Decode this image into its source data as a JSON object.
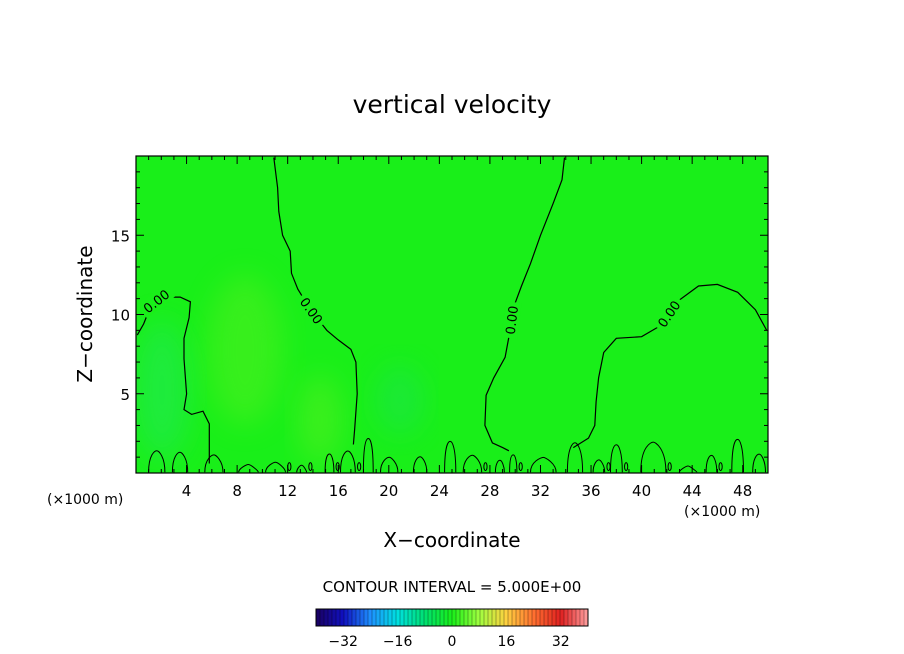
{
  "chart_data": {
    "type": "contour",
    "title": "vertical velocity",
    "xlabel": "X−coordinate",
    "ylabel": "Z−coordinate",
    "x_unit": "(×1000 m)",
    "y_unit": "(×1000 m)",
    "xlim": [
      0,
      50
    ],
    "ylim": [
      0,
      20
    ],
    "x_ticks": [
      4,
      8,
      12,
      16,
      20,
      24,
      28,
      32,
      36,
      40,
      44,
      48
    ],
    "x_tick_labels": [
      "4",
      "8",
      "12",
      "16",
      "20",
      "24",
      "28",
      "32",
      "36",
      "40",
      "44",
      "48"
    ],
    "y_ticks": [
      5,
      10,
      15
    ],
    "y_tick_labels": [
      "5",
      "10",
      "15"
    ],
    "field_color": "#19ef19",
    "contour_level_label": "0.00",
    "contour_interval_text": "CONTOUR INTERVAL = 5.000E+00",
    "zero_contours": [
      [
        [
          0.1,
          8.7
        ],
        [
          0.6,
          9.4
        ],
        [
          1.2,
          10.6
        ],
        [
          2.0,
          11.1
        ],
        [
          3.5,
          11.1
        ],
        [
          4.3,
          10.8
        ],
        [
          4.2,
          9.8
        ],
        [
          3.8,
          8.5
        ],
        [
          3.8,
          7.2
        ],
        [
          4.0,
          5.0
        ],
        [
          3.8,
          4.0
        ],
        [
          4.4,
          3.7
        ],
        [
          5.3,
          3.9
        ],
        [
          5.8,
          3.1
        ],
        [
          5.8,
          0.6
        ]
      ],
      [
        [
          10.9,
          19.9
        ],
        [
          11.2,
          18.0
        ],
        [
          11.3,
          16.5
        ],
        [
          11.6,
          15.0
        ],
        [
          12.2,
          14.0
        ],
        [
          12.3,
          12.6
        ],
        [
          12.8,
          11.6
        ],
        [
          13.5,
          10.7
        ],
        [
          14.3,
          9.8
        ],
        [
          15.1,
          9.0
        ],
        [
          16.0,
          8.4
        ],
        [
          17.0,
          7.8
        ],
        [
          17.4,
          7.0
        ],
        [
          17.5,
          5.0
        ],
        [
          17.3,
          2.8
        ],
        [
          17.2,
          1.8
        ]
      ],
      [
        [
          33.9,
          19.9
        ],
        [
          33.7,
          18.5
        ],
        [
          33.0,
          17.0
        ],
        [
          32.0,
          15.0
        ],
        [
          31.2,
          13.2
        ],
        [
          30.5,
          11.8
        ],
        [
          29.8,
          10.3
        ],
        [
          29.6,
          9.0
        ],
        [
          29.2,
          7.3
        ],
        [
          28.3,
          6.0
        ],
        [
          27.7,
          4.9
        ],
        [
          27.6,
          3.0
        ],
        [
          28.2,
          1.9
        ],
        [
          29.0,
          1.6
        ],
        [
          29.5,
          1.4
        ]
      ],
      [
        [
          49.9,
          9.0
        ],
        [
          49.0,
          10.3
        ],
        [
          47.6,
          11.4
        ],
        [
          46.0,
          11.9
        ],
        [
          44.5,
          11.8
        ],
        [
          42.8,
          10.8
        ],
        [
          41.5,
          9.3
        ],
        [
          40.0,
          8.6
        ],
        [
          38.0,
          8.5
        ],
        [
          37.0,
          7.6
        ],
        [
          36.6,
          6.0
        ],
        [
          36.4,
          4.5
        ],
        [
          36.3,
          3.0
        ],
        [
          35.8,
          2.2
        ],
        [
          34.6,
          1.6
        ]
      ]
    ],
    "color_scale": {
      "tick_values": [
        -32,
        -16,
        0,
        16,
        32
      ],
      "tick_labels": [
        "−32",
        "−16",
        "0",
        "16",
        "32"
      ],
      "range": [
        -40,
        40
      ],
      "stops": [
        "#1a0060",
        "#1010c0",
        "#1e90ff",
        "#00e0e0",
        "#00e070",
        "#19ef19",
        "#a0ff40",
        "#ffd040",
        "#ff7030",
        "#e02020",
        "#ffa0a0"
      ]
    }
  }
}
